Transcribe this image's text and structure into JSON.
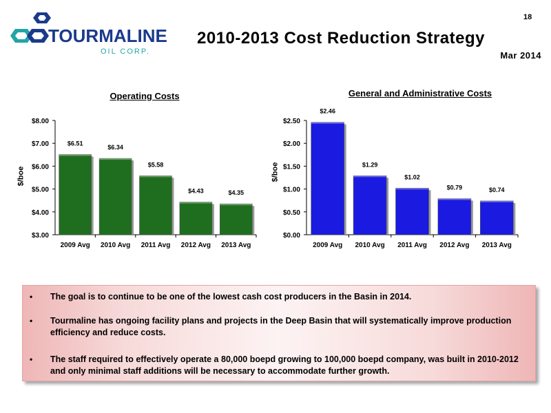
{
  "slide_number": "18",
  "title": "2010-2013 Cost Reduction Strategy",
  "date": "Mar 2014",
  "logo": {
    "name": "TOURMALINE",
    "subtitle": "OIL CORP."
  },
  "colors": {
    "operating_bars": "#1f6e1f",
    "ga_bars": "#1a1ae0",
    "title_underline": "#000000"
  },
  "chart_data": [
    {
      "type": "bar",
      "title": "Operating Costs",
      "xlabel": "",
      "ylabel": "$/boe",
      "categories": [
        "2009 Avg",
        "2010 Avg",
        "2011 Avg",
        "2012 Avg",
        "2013 Avg"
      ],
      "values": [
        6.51,
        6.34,
        5.58,
        4.43,
        4.35
      ],
      "data_labels": [
        "$6.51",
        "$6.34",
        "$5.58",
        "$4.43",
        "$4.35"
      ],
      "ylim": [
        3.0,
        8.0
      ],
      "yticks": [
        3,
        4,
        5,
        6,
        7,
        8
      ],
      "ytick_labels": [
        "$3.00",
        "$4.00",
        "$5.00",
        "$6.00",
        "$7.00",
        "$8.00"
      ],
      "grid": false,
      "color": "#1f6e1f"
    },
    {
      "type": "bar",
      "title": "General and Administrative Costs",
      "xlabel": "",
      "ylabel": "$/boe",
      "categories": [
        "2009 Avg",
        "2010 Avg",
        "2011 Avg",
        "2012 Avg",
        "2013 Avg"
      ],
      "values": [
        2.46,
        1.29,
        1.02,
        0.79,
        0.74
      ],
      "data_labels": [
        "$2.46",
        "$1.29",
        "$1.02",
        "$0.79",
        "$0.74"
      ],
      "ylim": [
        0.0,
        2.5
      ],
      "yticks": [
        0,
        0.5,
        1.0,
        1.5,
        2.0,
        2.5
      ],
      "ytick_labels": [
        "$0.00",
        "$0.50",
        "$1.00",
        "$1.50",
        "$2.00",
        "$2.50"
      ],
      "grid": false,
      "color": "#1a1ae0"
    }
  ],
  "bullets": [
    "The goal is to continue to be one of the lowest cash cost producers in the Basin in 2014.",
    "Tourmaline has ongoing facility plans and projects in the Deep Basin that will systematically improve production efficiency and reduce costs.",
    "The staff required to effectively operate a 80,000 boepd growing to 100,000 boepd company, was built in 2010-2012 and only minimal staff additions will be necessary to accommodate further growth."
  ],
  "bullet_symbol": "•"
}
